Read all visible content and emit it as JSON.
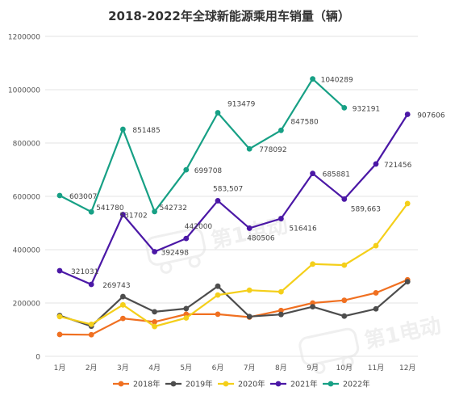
{
  "chart_data": {
    "type": "line",
    "title": "2018-2022年全球新能源乘用车销量（辆）",
    "xlabel": "",
    "ylabel": "",
    "categories": [
      "1月",
      "2月",
      "3月",
      "4月",
      "5月",
      "6月",
      "7月",
      "8月",
      "9月",
      "10月",
      "11月",
      "12月"
    ],
    "ylim": [
      0,
      1200000
    ],
    "yticks": [
      0,
      200000,
      400000,
      600000,
      800000,
      1000000,
      1200000
    ],
    "ytick_labels": [
      "0",
      "200000",
      "400000",
      "600000",
      "800000",
      "1000000",
      "1200000"
    ],
    "grid": true,
    "legend_position": "bottom",
    "series": [
      {
        "name": "2018年",
        "color": "#f07021",
        "values": [
          82000,
          81000,
          142000,
          129000,
          158000,
          158000,
          147000,
          172000,
          200000,
          210000,
          238000,
          287000
        ],
        "labels": []
      },
      {
        "name": "2019年",
        "color": "#4d4d4d",
        "values": [
          153000,
          113000,
          224000,
          167000,
          179000,
          263000,
          149000,
          157000,
          186000,
          151000,
          178000,
          280000
        ],
        "labels": []
      },
      {
        "name": "2020年",
        "color": "#f4cf1a",
        "values": [
          149000,
          120000,
          193000,
          112000,
          144000,
          230000,
          248000,
          242000,
          346000,
          342000,
          415000,
          573000
        ],
        "labels": []
      },
      {
        "name": "2021年",
        "color": "#4b18a6",
        "values": [
          321031,
          269743,
          531702,
          392498,
          442000,
          583507,
          480506,
          516416,
          685881,
          589663,
          721456,
          907606
        ],
        "labels": [
          "321031",
          "269743",
          "531702",
          "392498",
          "442000",
          "583,507",
          "480506",
          "516416",
          "685881",
          "589,663",
          "721456",
          "907606"
        ]
      },
      {
        "name": "2022年",
        "color": "#17a085",
        "values": [
          603007,
          541780,
          851485,
          542732,
          699708,
          913479,
          778092,
          847580,
          1040289,
          932191,
          null,
          null
        ],
        "labels": [
          "603007",
          "541780",
          "851485",
          "542732",
          "699708",
          "913479",
          "778092",
          "847580",
          "1040289",
          "932191",
          "",
          ""
        ]
      }
    ]
  },
  "watermarks": [
    "第1电动",
    "第1电动"
  ]
}
